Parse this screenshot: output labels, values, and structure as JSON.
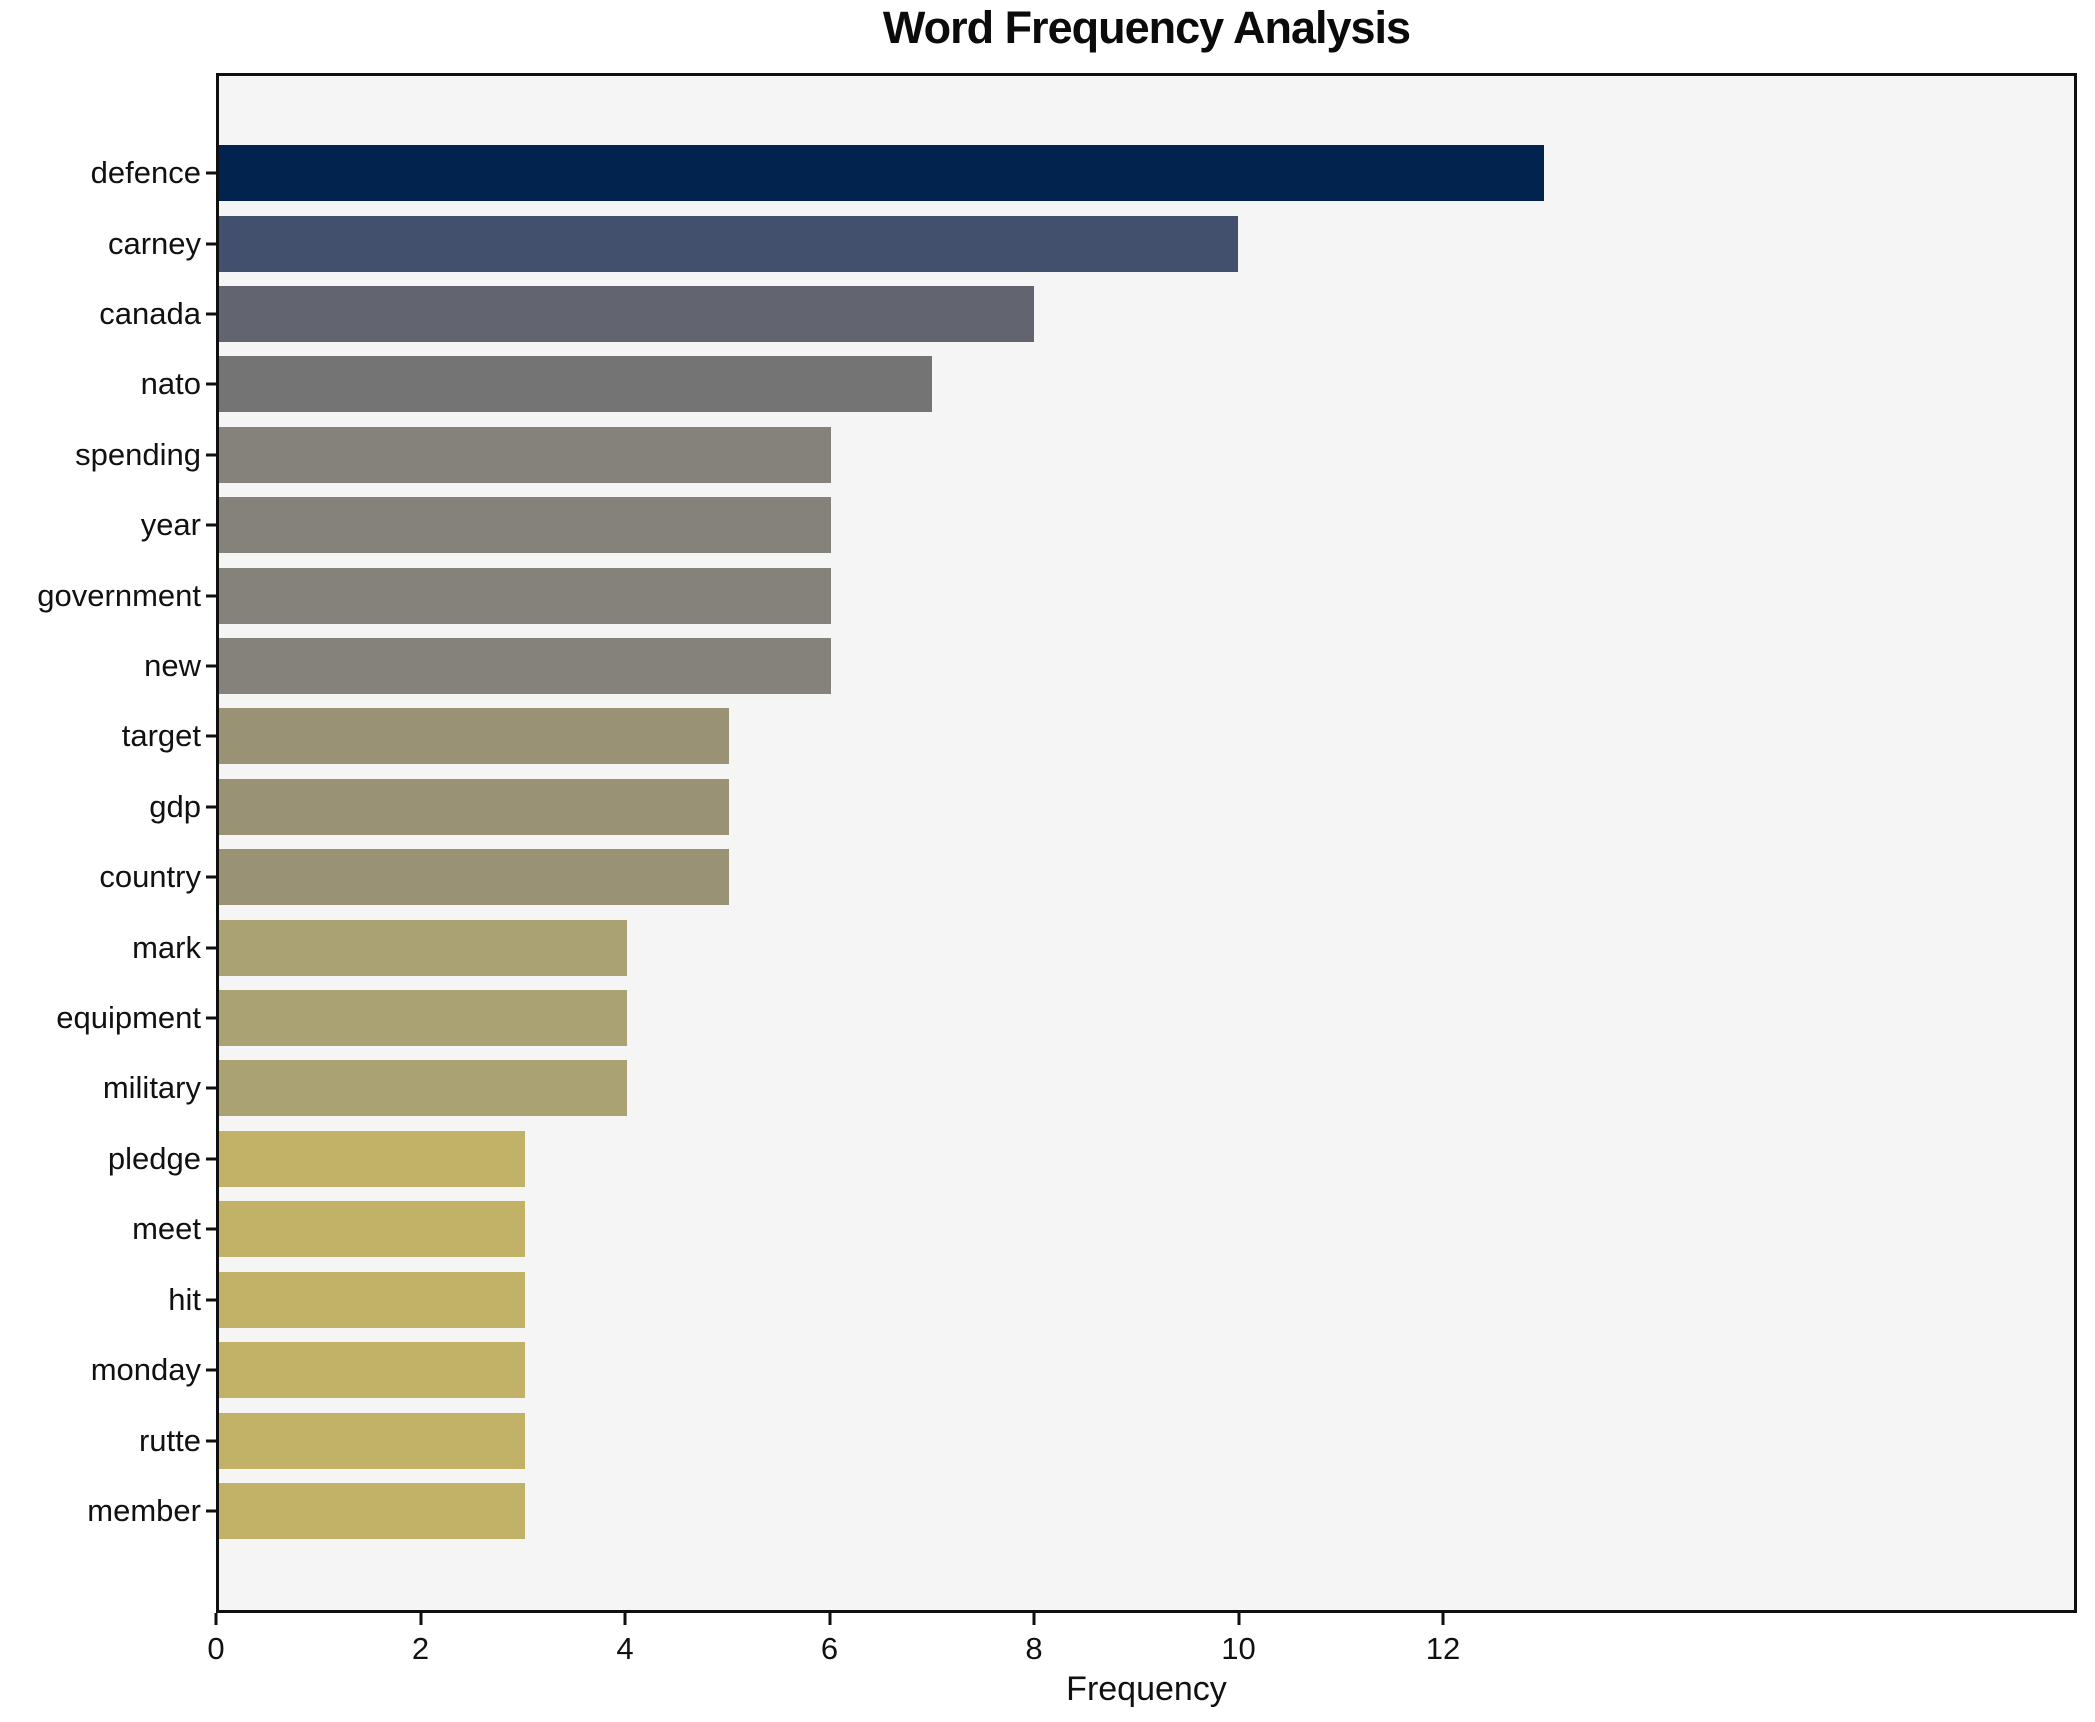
{
  "chart_data": {
    "type": "bar",
    "orientation": "horizontal",
    "title": "Word Frequency Analysis",
    "xlabel": "Frequency",
    "ylabel": "",
    "grid": false,
    "legend": null,
    "plot_background": "#f5f5f6",
    "figure_background": "#ffffff",
    "xlim": [
      0,
      18.2
    ],
    "xticks": [
      0,
      2,
      4,
      6,
      8,
      10,
      12
    ],
    "categories": [
      "defence",
      "carney",
      "canada",
      "nato",
      "spending",
      "year",
      "government",
      "new",
      "target",
      "gdp",
      "country",
      "mark",
      "equipment",
      "military",
      "pledge",
      "meet",
      "hit",
      "monday",
      "rutte",
      "member"
    ],
    "values": [
      13,
      10,
      8,
      7,
      6,
      6,
      6,
      6,
      5,
      5,
      5,
      4,
      4,
      4,
      3,
      3,
      3,
      3,
      3,
      3
    ],
    "bar_colors": [
      "#02234e",
      "#42506e",
      "#626570",
      "#737473",
      "#84827a",
      "#84827a",
      "#84827a",
      "#84827a",
      "#999274",
      "#999274",
      "#999274",
      "#aba273",
      "#aba273",
      "#aba273",
      "#c2b268",
      "#c2b268",
      "#c2b268",
      "#c2b268",
      "#c2b268",
      "#c2b268"
    ],
    "colormap": "cividis-reversed-by-value",
    "axis_color": "#0f0f0f"
  }
}
